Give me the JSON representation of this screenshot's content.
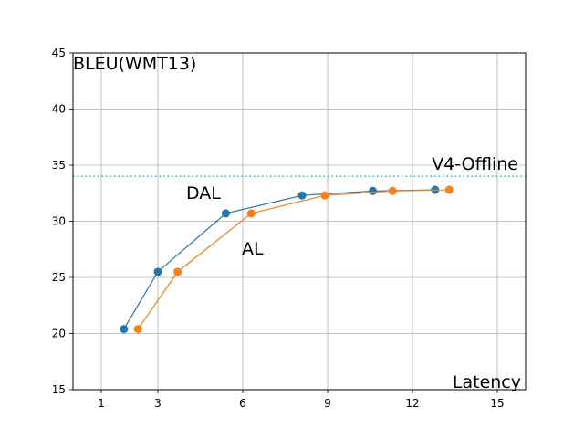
{
  "chart_data": {
    "type": "line",
    "title": "",
    "ylabel": "BLEU(WMT13)",
    "xlabel": "Latency",
    "xlim": [
      0,
      16
    ],
    "ylim": [
      15,
      45
    ],
    "xticks": [
      1,
      3,
      6,
      9,
      12,
      15
    ],
    "yticks": [
      15,
      20,
      25,
      30,
      35,
      40,
      45
    ],
    "grid": true,
    "series": [
      {
        "name": "DAL",
        "color": "#1f77b4",
        "x": [
          1.8,
          3.0,
          5.4,
          8.1,
          10.6,
          12.8
        ],
        "y": [
          20.4,
          25.5,
          30.7,
          32.3,
          32.7,
          32.8
        ]
      },
      {
        "name": "AL",
        "color": "#ff7f0e",
        "x": [
          2.3,
          3.7,
          6.3,
          8.9,
          11.3,
          13.3
        ],
        "y": [
          20.4,
          25.5,
          30.7,
          32.3,
          32.7,
          32.8
        ]
      }
    ],
    "reference_line": {
      "name": "V4-Offline",
      "y": 34.0,
      "color": "#17becf",
      "style": "dotted"
    }
  }
}
